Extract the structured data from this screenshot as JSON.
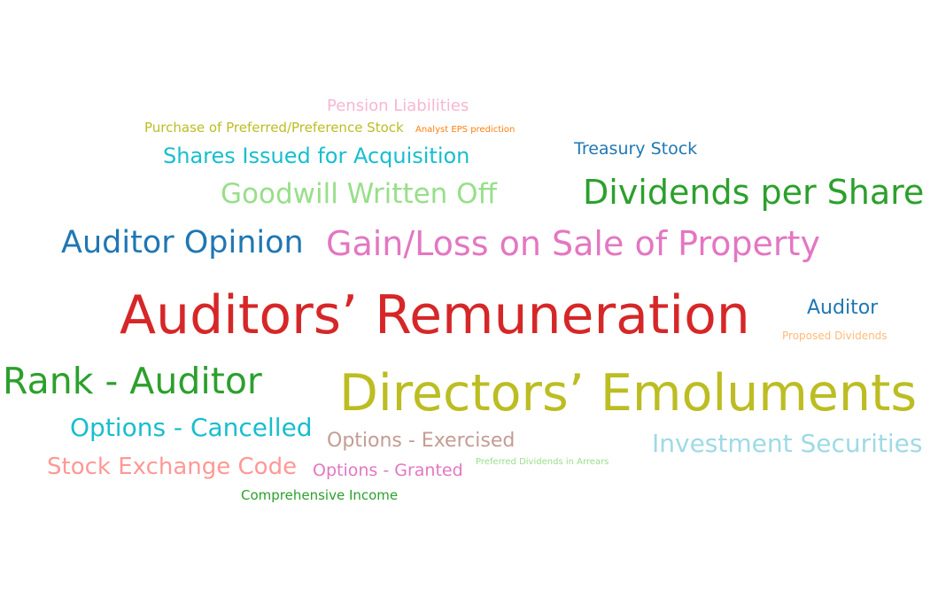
{
  "chart_data": {
    "type": "word-cloud",
    "words": [
      {
        "text": "Auditors’ Remuneration",
        "color": "#d62728"
      },
      {
        "text": "Directors’ Emoluments",
        "color": "#bcbd22"
      },
      {
        "text": "Gain/Loss on Sale of Property",
        "color": "#e377c2"
      },
      {
        "text": "Dividends per Share",
        "color": "#2ca02c"
      },
      {
        "text": "Rank - Auditor",
        "color": "#2ca02c"
      },
      {
        "text": "Auditor Opinion",
        "color": "#1f77b4"
      },
      {
        "text": "Goodwill Written Off",
        "color": "#98df8a"
      },
      {
        "text": "Investment Securities",
        "color": "#9edae5"
      },
      {
        "text": "Options - Cancelled",
        "color": "#17becf"
      },
      {
        "text": "Shares Issued for Acquisition",
        "color": "#17becf"
      },
      {
        "text": "Stock Exchange Code",
        "color": "#ff9896"
      },
      {
        "text": "Options - Exercised",
        "color": "#c49c94"
      },
      {
        "text": "Auditor",
        "color": "#1f77b4"
      },
      {
        "text": "Treasury Stock",
        "color": "#1f77b4"
      },
      {
        "text": "Options - Granted",
        "color": "#e377c2"
      },
      {
        "text": "Pension Liabilities",
        "color": "#f7b6d2"
      },
      {
        "text": "Comprehensive Income",
        "color": "#2ca02c"
      },
      {
        "text": "Purchase of Preferred/Preference Stock",
        "color": "#bcbd22"
      },
      {
        "text": "Proposed Dividends",
        "color": "#ffbb78"
      },
      {
        "text": "Analyst EPS prediction",
        "color": "#ff7f0e"
      },
      {
        "text": "Preferred Dividends in Arrears",
        "color": "#98df8a"
      }
    ]
  }
}
